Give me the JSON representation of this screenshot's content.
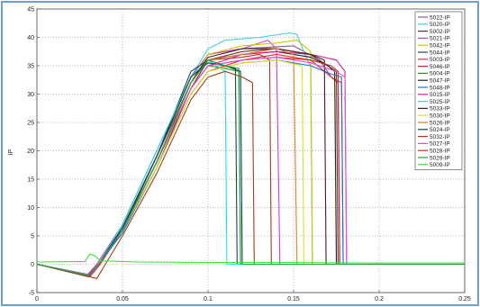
{
  "chart_data": {
    "type": "line",
    "title": "",
    "xlabel": "",
    "ylabel": "IP",
    "xlim": [
      0,
      0.25
    ],
    "ylim": [
      -5,
      45
    ],
    "grid": true,
    "legend_position": "top-right",
    "x_ticks": [
      "0",
      "0.05",
      "0.1",
      "0.15",
      "0.2",
      "0.25"
    ],
    "y_ticks": [
      "-5",
      "0",
      "5",
      "10",
      "15",
      "20",
      "25",
      "30",
      "35",
      "40",
      "45"
    ],
    "series": [
      {
        "name": "5022-IP",
        "color": "#8a5a8a",
        "points": [
          [
            0,
            0
          ],
          [
            0.03,
            -1.8
          ],
          [
            0.036,
            0
          ],
          [
            0.05,
            6
          ],
          [
            0.07,
            18
          ],
          [
            0.09,
            32
          ],
          [
            0.1,
            37
          ],
          [
            0.12,
            38
          ],
          [
            0.15,
            38.5
          ],
          [
            0.165,
            36
          ],
          [
            0.172,
            33
          ],
          [
            0.176,
            32
          ],
          [
            0.177,
            0
          ],
          [
            0.25,
            0
          ]
        ]
      },
      {
        "name": "5020-IP",
        "color": "#40d0e0",
        "points": [
          [
            0,
            0
          ],
          [
            0.031,
            -2
          ],
          [
            0.037,
            0
          ],
          [
            0.05,
            6.5
          ],
          [
            0.07,
            19
          ],
          [
            0.09,
            33
          ],
          [
            0.1,
            38
          ],
          [
            0.11,
            39.5
          ],
          [
            0.13,
            40
          ],
          [
            0.148,
            40.8
          ],
          [
            0.152,
            40.5
          ],
          [
            0.158,
            36
          ],
          [
            0.16,
            35
          ],
          [
            0.161,
            0
          ],
          [
            0.25,
            0
          ]
        ]
      },
      {
        "name": "5002-IP",
        "color": "#6a3030",
        "points": [
          [
            0,
            0
          ],
          [
            0.03,
            -2.2
          ],
          [
            0.036,
            0
          ],
          [
            0.05,
            6
          ],
          [
            0.07,
            17
          ],
          [
            0.09,
            31
          ],
          [
            0.1,
            36
          ],
          [
            0.12,
            37.5
          ],
          [
            0.14,
            38
          ],
          [
            0.16,
            37
          ],
          [
            0.17,
            35
          ],
          [
            0.175,
            34
          ],
          [
            0.176,
            0
          ],
          [
            0.25,
            0
          ]
        ]
      },
      {
        "name": "5021-IP",
        "color": "#d040d0",
        "points": [
          [
            0,
            0
          ],
          [
            0.029,
            -2
          ],
          [
            0.035,
            0
          ],
          [
            0.05,
            7
          ],
          [
            0.07,
            20
          ],
          [
            0.09,
            33
          ],
          [
            0.1,
            37
          ],
          [
            0.12,
            38
          ],
          [
            0.135,
            39.5
          ],
          [
            0.14,
            38
          ],
          [
            0.142,
            0
          ],
          [
            0.25,
            0
          ]
        ]
      },
      {
        "name": "5042-IP",
        "color": "#c8c800",
        "points": [
          [
            0,
            0
          ],
          [
            0.03,
            -2
          ],
          [
            0.036,
            0
          ],
          [
            0.05,
            6
          ],
          [
            0.07,
            18
          ],
          [
            0.09,
            32
          ],
          [
            0.1,
            37
          ],
          [
            0.12,
            38.5
          ],
          [
            0.14,
            39
          ],
          [
            0.152,
            39.5
          ],
          [
            0.158,
            38
          ],
          [
            0.16,
            37.5
          ],
          [
            0.161,
            0
          ],
          [
            0.25,
            0
          ]
        ]
      },
      {
        "name": "5044-IP",
        "color": "#1a4a4a",
        "points": [
          [
            0,
            0
          ],
          [
            0.03,
            -2
          ],
          [
            0.036,
            0
          ],
          [
            0.05,
            6
          ],
          [
            0.07,
            19
          ],
          [
            0.09,
            34
          ],
          [
            0.1,
            36
          ],
          [
            0.11,
            35
          ],
          [
            0.116,
            34.5
          ],
          [
            0.117,
            0
          ],
          [
            0.25,
            0
          ]
        ]
      },
      {
        "name": "5003-IP",
        "color": "#e03030",
        "points": [
          [
            0,
            0
          ],
          [
            0.031,
            -2.2
          ],
          [
            0.037,
            0
          ],
          [
            0.05,
            6
          ],
          [
            0.07,
            17
          ],
          [
            0.09,
            30
          ],
          [
            0.1,
            34
          ],
          [
            0.12,
            36
          ],
          [
            0.14,
            37
          ],
          [
            0.16,
            36
          ],
          [
            0.172,
            33
          ],
          [
            0.178,
            32
          ],
          [
            0.179,
            0
          ],
          [
            0.25,
            0
          ]
        ]
      },
      {
        "name": "5046-IP",
        "color": "#b03030",
        "points": [
          [
            0,
            0
          ],
          [
            0.03,
            -2
          ],
          [
            0.036,
            0
          ],
          [
            0.05,
            6.5
          ],
          [
            0.07,
            19
          ],
          [
            0.09,
            32
          ],
          [
            0.1,
            36
          ],
          [
            0.12,
            36.5
          ],
          [
            0.13,
            37
          ],
          [
            0.136,
            36
          ],
          [
            0.137,
            0
          ],
          [
            0.25,
            0
          ]
        ]
      },
      {
        "name": "5004-IP",
        "color": "#309030",
        "points": [
          [
            0,
            0
          ],
          [
            0.03,
            -2
          ],
          [
            0.036,
            0
          ],
          [
            0.05,
            6
          ],
          [
            0.07,
            18
          ],
          [
            0.09,
            31
          ],
          [
            0.1,
            35
          ],
          [
            0.11,
            34.5
          ],
          [
            0.118,
            34
          ],
          [
            0.119,
            0
          ],
          [
            0.25,
            0
          ]
        ]
      },
      {
        "name": "5047-IP",
        "color": "#202020",
        "points": [
          [
            0,
            0
          ],
          [
            0.03,
            -2
          ],
          [
            0.036,
            0
          ],
          [
            0.05,
            6
          ],
          [
            0.07,
            18
          ],
          [
            0.09,
            32
          ],
          [
            0.1,
            36
          ],
          [
            0.12,
            37
          ],
          [
            0.14,
            37.5
          ],
          [
            0.16,
            36.5
          ],
          [
            0.17,
            35
          ],
          [
            0.174,
            34
          ],
          [
            0.175,
            0
          ],
          [
            0.25,
            0
          ]
        ]
      },
      {
        "name": "5048-IP",
        "color": "#2070d0",
        "points": [
          [
            0,
            0
          ],
          [
            0.03,
            -2
          ],
          [
            0.036,
            0
          ],
          [
            0.05,
            5.5
          ],
          [
            0.07,
            17
          ],
          [
            0.09,
            30
          ],
          [
            0.1,
            34
          ],
          [
            0.12,
            35.5
          ],
          [
            0.14,
            36
          ],
          [
            0.16,
            35
          ],
          [
            0.172,
            33.5
          ],
          [
            0.178,
            33
          ],
          [
            0.179,
            0
          ],
          [
            0.25,
            0
          ]
        ]
      },
      {
        "name": "5015-IP",
        "color": "#d02090",
        "points": [
          [
            0,
            0
          ],
          [
            0.03,
            -2
          ],
          [
            0.036,
            0
          ],
          [
            0.05,
            6
          ],
          [
            0.07,
            18
          ],
          [
            0.09,
            31
          ],
          [
            0.1,
            35
          ],
          [
            0.12,
            37
          ],
          [
            0.14,
            37.5
          ],
          [
            0.16,
            37
          ],
          [
            0.175,
            36
          ],
          [
            0.18,
            34
          ],
          [
            0.181,
            0
          ],
          [
            0.25,
            0
          ]
        ]
      },
      {
        "name": "5025-IP",
        "color": "#20e0f0",
        "points": [
          [
            0,
            0
          ],
          [
            0.03,
            -2
          ],
          [
            0.036,
            0
          ],
          [
            0.05,
            7
          ],
          [
            0.07,
            20
          ],
          [
            0.09,
            33
          ],
          [
            0.1,
            36
          ],
          [
            0.105,
            35
          ],
          [
            0.11,
            34
          ],
          [
            0.111,
            0
          ],
          [
            0.25,
            0
          ]
        ]
      },
      {
        "name": "5033-IP",
        "color": "#4a1a1a",
        "points": [
          [
            0,
            0
          ],
          [
            0.03,
            -2
          ],
          [
            0.036,
            0
          ],
          [
            0.05,
            6
          ],
          [
            0.07,
            18
          ],
          [
            0.09,
            32
          ],
          [
            0.1,
            36.5
          ],
          [
            0.12,
            38
          ],
          [
            0.14,
            38
          ],
          [
            0.16,
            37
          ],
          [
            0.168,
            36
          ],
          [
            0.169,
            0
          ],
          [
            0.25,
            0
          ]
        ]
      },
      {
        "name": "5030-IP",
        "color": "#e0e020",
        "points": [
          [
            0,
            0
          ],
          [
            0.03,
            -2
          ],
          [
            0.036,
            0
          ],
          [
            0.05,
            6
          ],
          [
            0.07,
            17
          ],
          [
            0.09,
            30
          ],
          [
            0.1,
            34
          ],
          [
            0.12,
            35.5
          ],
          [
            0.14,
            36
          ],
          [
            0.155,
            35
          ],
          [
            0.156,
            0
          ],
          [
            0.25,
            0
          ]
        ]
      },
      {
        "name": "5026-IP",
        "color": "#e08030",
        "points": [
          [
            0,
            0
          ],
          [
            0.03,
            -2
          ],
          [
            0.036,
            0
          ],
          [
            0.05,
            6
          ],
          [
            0.07,
            18
          ],
          [
            0.09,
            32
          ],
          [
            0.1,
            36
          ],
          [
            0.12,
            37
          ],
          [
            0.14,
            38
          ],
          [
            0.15,
            37
          ],
          [
            0.152,
            0
          ],
          [
            0.25,
            0
          ]
        ]
      },
      {
        "name": "5024-IP",
        "color": "#104040",
        "points": [
          [
            0,
            0
          ],
          [
            0.03,
            -2
          ],
          [
            0.036,
            0
          ],
          [
            0.05,
            6.5
          ],
          [
            0.07,
            19
          ],
          [
            0.09,
            33
          ],
          [
            0.1,
            35.5
          ],
          [
            0.11,
            35
          ],
          [
            0.119,
            34
          ],
          [
            0.12,
            0
          ],
          [
            0.25,
            0
          ]
        ]
      },
      {
        "name": "5032-IP",
        "color": "#c03020",
        "points": [
          [
            0,
            0
          ],
          [
            0.03,
            -2
          ],
          [
            0.036,
            0
          ],
          [
            0.05,
            6
          ],
          [
            0.07,
            18
          ],
          [
            0.09,
            31
          ],
          [
            0.1,
            35
          ],
          [
            0.12,
            36
          ],
          [
            0.14,
            36.5
          ],
          [
            0.16,
            36
          ],
          [
            0.172,
            35
          ],
          [
            0.176,
            34
          ],
          [
            0.177,
            0
          ],
          [
            0.25,
            0
          ]
        ]
      },
      {
        "name": "5027-IP",
        "color": "#e050e0",
        "points": [
          [
            0,
            0
          ],
          [
            0.03,
            -2
          ],
          [
            0.036,
            0
          ],
          [
            0.05,
            6
          ],
          [
            0.07,
            18
          ],
          [
            0.09,
            31
          ],
          [
            0.1,
            35
          ],
          [
            0.12,
            36
          ],
          [
            0.14,
            36.5
          ],
          [
            0.16,
            35.5
          ],
          [
            0.175,
            34
          ],
          [
            0.18,
            33
          ],
          [
            0.181,
            0
          ],
          [
            0.25,
            0
          ]
        ]
      },
      {
        "name": "5028-IP",
        "color": "#a04010",
        "points": [
          [
            0,
            0
          ],
          [
            0.035,
            -2.5
          ],
          [
            0.04,
            0
          ],
          [
            0.05,
            5
          ],
          [
            0.07,
            16
          ],
          [
            0.09,
            29
          ],
          [
            0.1,
            33
          ],
          [
            0.11,
            34
          ],
          [
            0.12,
            33
          ],
          [
            0.126,
            32
          ],
          [
            0.127,
            0
          ],
          [
            0.25,
            0
          ]
        ]
      },
      {
        "name": "5029-IP",
        "color": "#20a040",
        "points": [
          [
            0,
            0
          ],
          [
            0.03,
            -2
          ],
          [
            0.036,
            0
          ],
          [
            0.05,
            6
          ],
          [
            0.07,
            18
          ],
          [
            0.09,
            32
          ],
          [
            0.1,
            36
          ],
          [
            0.11,
            35
          ],
          [
            0.118,
            34.5
          ],
          [
            0.119,
            0
          ],
          [
            0.25,
            0
          ]
        ]
      },
      {
        "name": "5009-IP",
        "color": "#40e040",
        "points": [
          [
            0,
            0.4
          ],
          [
            0.028,
            0.5
          ],
          [
            0.031,
            1.8
          ],
          [
            0.034,
            1.5
          ],
          [
            0.037,
            0.6
          ],
          [
            0.06,
            0.4
          ],
          [
            0.1,
            0.3
          ],
          [
            0.15,
            0.3
          ],
          [
            0.2,
            0.2
          ],
          [
            0.25,
            0.2
          ]
        ]
      }
    ]
  }
}
